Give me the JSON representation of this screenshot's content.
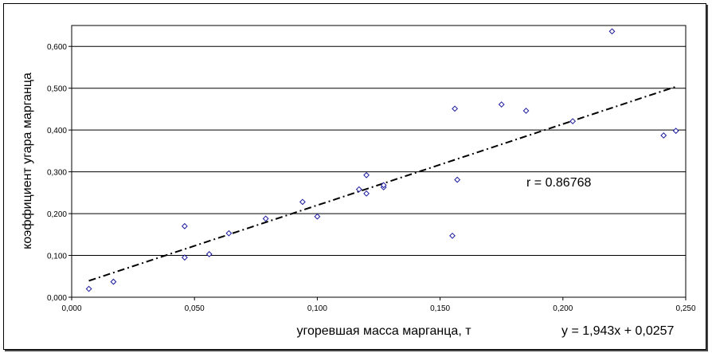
{
  "chart_data": {
    "type": "scatter",
    "title": "",
    "xlabel": "угоревшая масса марганца, т",
    "ylabel": "коэффициент угара марганца",
    "xlim": [
      0,
      0.25
    ],
    "ylim": [
      0,
      0.65
    ],
    "x_ticks": [
      "0,000",
      "0,050",
      "0,100",
      "0,150",
      "0,200",
      "0,250"
    ],
    "y_ticks": [
      "0,000",
      "0,100",
      "0,200",
      "0,300",
      "0,400",
      "0,500",
      "0,600"
    ],
    "grid": "horizontal",
    "marker": "diamond",
    "colors": {
      "marker": "#1a1a9e",
      "trendline": "#000000",
      "grid": "#000000"
    },
    "points": [
      [
        0.007,
        0.02
      ],
      [
        0.017,
        0.037
      ],
      [
        0.046,
        0.17
      ],
      [
        0.046,
        0.095
      ],
      [
        0.056,
        0.103
      ],
      [
        0.064,
        0.153
      ],
      [
        0.079,
        0.188
      ],
      [
        0.094,
        0.228
      ],
      [
        0.1,
        0.193
      ],
      [
        0.117,
        0.258
      ],
      [
        0.12,
        0.248
      ],
      [
        0.12,
        0.292
      ],
      [
        0.127,
        0.263
      ],
      [
        0.127,
        0.268
      ],
      [
        0.155,
        0.147
      ],
      [
        0.156,
        0.451
      ],
      [
        0.157,
        0.281
      ],
      [
        0.175,
        0.461
      ],
      [
        0.185,
        0.446
      ],
      [
        0.204,
        0.421
      ],
      [
        0.22,
        0.636
      ],
      [
        0.241,
        0.387
      ],
      [
        0.246,
        0.398
      ]
    ],
    "trendline": {
      "style": "dash-dot",
      "slope": 1.943,
      "intercept": 0.0257,
      "x_range": [
        0.007,
        0.246
      ]
    },
    "annotations": {
      "r": "r = 0.86768",
      "equation": "y = 1,943x + 0,0257"
    }
  }
}
